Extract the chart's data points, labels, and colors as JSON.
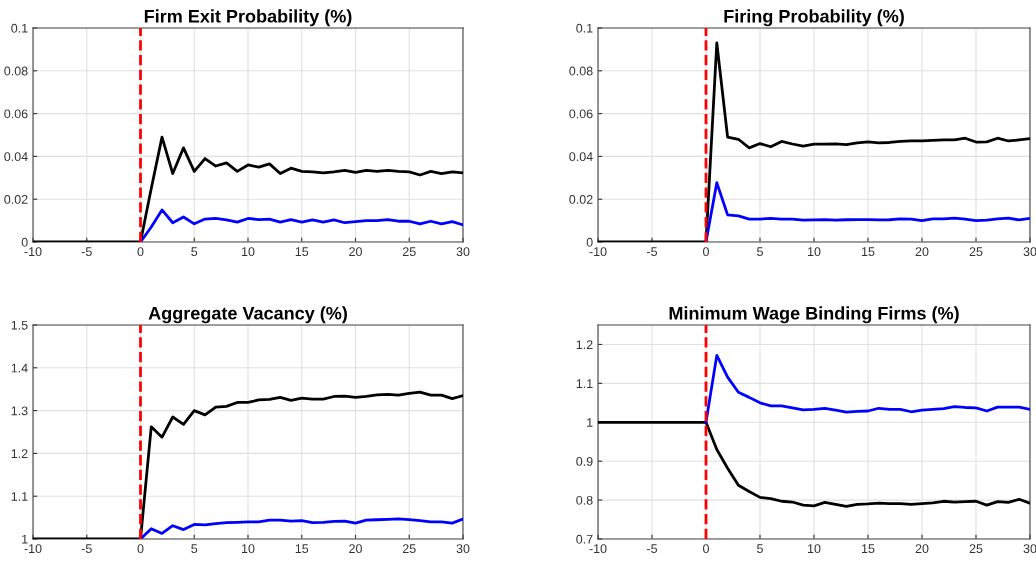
{
  "chart_data": [
    {
      "type": "line",
      "title": "Firm Exit Probability (%)",
      "xlim": [
        -10,
        30
      ],
      "xticks": [
        -10,
        -5,
        0,
        5,
        10,
        15,
        20,
        25,
        30
      ],
      "ylim": [
        0,
        0.1
      ],
      "yticks": [
        0,
        0.02,
        0.04,
        0.06,
        0.08,
        0.1
      ],
      "grid": true,
      "ref_lines": [
        {
          "axis": "x",
          "value": 0,
          "color": "#ff0000",
          "line_style": "dashed"
        }
      ],
      "series": [
        {
          "color": "#000000",
          "x": [
            -10,
            0,
            1,
            2,
            3,
            4,
            5,
            6,
            7,
            8,
            9,
            10,
            11,
            12,
            13,
            14,
            15,
            16,
            17,
            18,
            19,
            20,
            21,
            22,
            23,
            24,
            25,
            26,
            27,
            28,
            29,
            30
          ],
          "values": [
            0,
            0,
            0.025,
            0.049,
            0.032,
            0.044,
            0.033,
            0.039,
            0.0355,
            0.037,
            0.033,
            0.036,
            0.035,
            0.0365,
            0.032,
            0.0345,
            0.033,
            0.0328,
            0.0323,
            0.0328,
            0.0335,
            0.0325,
            0.0335,
            0.033,
            0.0335,
            0.033,
            0.0328,
            0.0313,
            0.033,
            0.032,
            0.0328,
            0.0323
          ]
        },
        {
          "color": "#0000ff",
          "x": [
            0,
            1,
            2,
            3,
            4,
            5,
            6,
            7,
            8,
            9,
            10,
            11,
            12,
            13,
            14,
            15,
            16,
            17,
            18,
            19,
            20,
            21,
            22,
            23,
            24,
            25,
            26,
            27,
            28,
            29,
            30
          ],
          "values": [
            0,
            0.007,
            0.015,
            0.009,
            0.0117,
            0.0085,
            0.0107,
            0.011,
            0.0103,
            0.0093,
            0.011,
            0.0105,
            0.0107,
            0.0093,
            0.0105,
            0.0093,
            0.0103,
            0.0093,
            0.0103,
            0.009,
            0.0095,
            0.01,
            0.01,
            0.0105,
            0.0097,
            0.0097,
            0.0085,
            0.0097,
            0.0085,
            0.0095,
            0.008
          ]
        }
      ]
    },
    {
      "type": "line",
      "title": "Firing Probability (%)",
      "xlim": [
        -10,
        30
      ],
      "xticks": [
        -10,
        -5,
        0,
        5,
        10,
        15,
        20,
        25,
        30
      ],
      "ylim": [
        0,
        0.1
      ],
      "yticks": [
        0,
        0.02,
        0.04,
        0.06,
        0.08,
        0.1
      ],
      "grid": true,
      "ref_lines": [
        {
          "axis": "x",
          "value": 0,
          "color": "#ff0000",
          "line_style": "dashed"
        }
      ],
      "series": [
        {
          "color": "#000000",
          "x": [
            -10,
            0,
            1,
            2,
            3,
            4,
            5,
            6,
            7,
            8,
            9,
            10,
            11,
            12,
            13,
            14,
            15,
            16,
            17,
            18,
            19,
            20,
            21,
            22,
            23,
            24,
            25,
            26,
            27,
            28,
            29,
            30
          ],
          "values": [
            0,
            0,
            0.093,
            0.049,
            0.048,
            0.044,
            0.046,
            0.0445,
            0.047,
            0.0458,
            0.0448,
            0.0457,
            0.0457,
            0.0458,
            0.0455,
            0.0463,
            0.0468,
            0.0463,
            0.0465,
            0.047,
            0.0473,
            0.0473,
            0.0475,
            0.0477,
            0.0477,
            0.0485,
            0.0467,
            0.0468,
            0.0485,
            0.0472,
            0.0477,
            0.0483
          ]
        },
        {
          "color": "#0000ff",
          "x": [
            0,
            1,
            2,
            3,
            4,
            5,
            6,
            7,
            8,
            9,
            10,
            11,
            12,
            13,
            14,
            15,
            16,
            17,
            18,
            19,
            20,
            21,
            22,
            23,
            24,
            25,
            26,
            27,
            28,
            29,
            30
          ],
          "values": [
            0,
            0.0277,
            0.0127,
            0.0122,
            0.0107,
            0.0107,
            0.011,
            0.0107,
            0.0107,
            0.0102,
            0.0103,
            0.0105,
            0.0102,
            0.0104,
            0.0105,
            0.0105,
            0.0103,
            0.0104,
            0.0108,
            0.0107,
            0.01,
            0.0108,
            0.0108,
            0.0112,
            0.0107,
            0.01,
            0.0102,
            0.0108,
            0.0112,
            0.0103,
            0.011
          ]
        }
      ]
    },
    {
      "type": "line",
      "title": "Aggregate Vacancy (%)",
      "xlim": [
        -10,
        30
      ],
      "xticks": [
        -10,
        -5,
        0,
        5,
        10,
        15,
        20,
        25,
        30
      ],
      "ylim": [
        1,
        1.5
      ],
      "yticks": [
        1,
        1.1,
        1.2,
        1.3,
        1.4,
        1.5
      ],
      "grid": true,
      "ref_lines": [
        {
          "axis": "x",
          "value": 0,
          "color": "#ff0000",
          "line_style": "dashed"
        }
      ],
      "series": [
        {
          "color": "#000000",
          "x": [
            -10,
            0,
            1,
            2,
            3,
            4,
            5,
            6,
            7,
            8,
            9,
            10,
            11,
            12,
            13,
            14,
            15,
            16,
            17,
            18,
            19,
            20,
            21,
            22,
            23,
            24,
            25,
            26,
            27,
            28,
            29,
            30
          ],
          "values": [
            1,
            1,
            1.262,
            1.238,
            1.285,
            1.268,
            1.3,
            1.29,
            1.308,
            1.31,
            1.319,
            1.319,
            1.325,
            1.326,
            1.331,
            1.324,
            1.329,
            1.327,
            1.327,
            1.333,
            1.334,
            1.331,
            1.333,
            1.337,
            1.338,
            1.336,
            1.34,
            1.343,
            1.336,
            1.336,
            1.328,
            1.335
          ]
        },
        {
          "color": "#0000ff",
          "x": [
            0,
            1,
            2,
            3,
            4,
            5,
            6,
            7,
            8,
            9,
            10,
            11,
            12,
            13,
            14,
            15,
            16,
            17,
            18,
            19,
            20,
            21,
            22,
            23,
            24,
            25,
            26,
            27,
            28,
            29,
            30
          ],
          "values": [
            1,
            1.024,
            1.013,
            1.031,
            1.022,
            1.034,
            1.033,
            1.036,
            1.038,
            1.039,
            1.04,
            1.04,
            1.044,
            1.044,
            1.042,
            1.043,
            1.038,
            1.039,
            1.041,
            1.042,
            1.037,
            1.044,
            1.045,
            1.046,
            1.047,
            1.045,
            1.043,
            1.04,
            1.04,
            1.037,
            1.047
          ]
        }
      ]
    },
    {
      "type": "line",
      "title": "Minimum Wage Binding Firms (%)",
      "xlim": [
        -10,
        30
      ],
      "xticks": [
        -10,
        -5,
        0,
        5,
        10,
        15,
        20,
        25,
        30
      ],
      "ylim": [
        0.7,
        1.25
      ],
      "yticks": [
        0.7,
        0.8,
        0.9,
        1,
        1.1,
        1.2
      ],
      "grid": true,
      "ref_lines": [
        {
          "axis": "x",
          "value": 0,
          "color": "#ff0000",
          "line_style": "dashed"
        }
      ],
      "series": [
        {
          "color": "#000000",
          "x": [
            -10,
            0,
            1,
            2,
            3,
            4,
            5,
            6,
            7,
            8,
            9,
            10,
            11,
            12,
            13,
            14,
            15,
            16,
            17,
            18,
            19,
            20,
            21,
            22,
            23,
            24,
            25,
            26,
            27,
            28,
            29,
            30
          ],
          "values": [
            1,
            1,
            0.93,
            0.882,
            0.838,
            0.822,
            0.807,
            0.804,
            0.797,
            0.795,
            0.787,
            0.785,
            0.794,
            0.789,
            0.784,
            0.789,
            0.79,
            0.792,
            0.791,
            0.791,
            0.789,
            0.791,
            0.793,
            0.797,
            0.795,
            0.796,
            0.797,
            0.787,
            0.796,
            0.794,
            0.802,
            0.792
          ]
        },
        {
          "color": "#0000ff",
          "x": [
            0,
            1,
            2,
            3,
            4,
            5,
            6,
            7,
            8,
            9,
            10,
            11,
            12,
            13,
            14,
            15,
            16,
            17,
            18,
            19,
            20,
            21,
            22,
            23,
            24,
            25,
            26,
            27,
            28,
            29,
            30
          ],
          "values": [
            1,
            1.172,
            1.116,
            1.077,
            1.064,
            1.05,
            1.042,
            1.042,
            1.037,
            1.032,
            1.033,
            1.036,
            1.031,
            1.026,
            1.028,
            1.029,
            1.036,
            1.033,
            1.033,
            1.027,
            1.031,
            1.033,
            1.035,
            1.04,
            1.038,
            1.037,
            1.029,
            1.039,
            1.039,
            1.039,
            1.033
          ]
        }
      ]
    }
  ]
}
